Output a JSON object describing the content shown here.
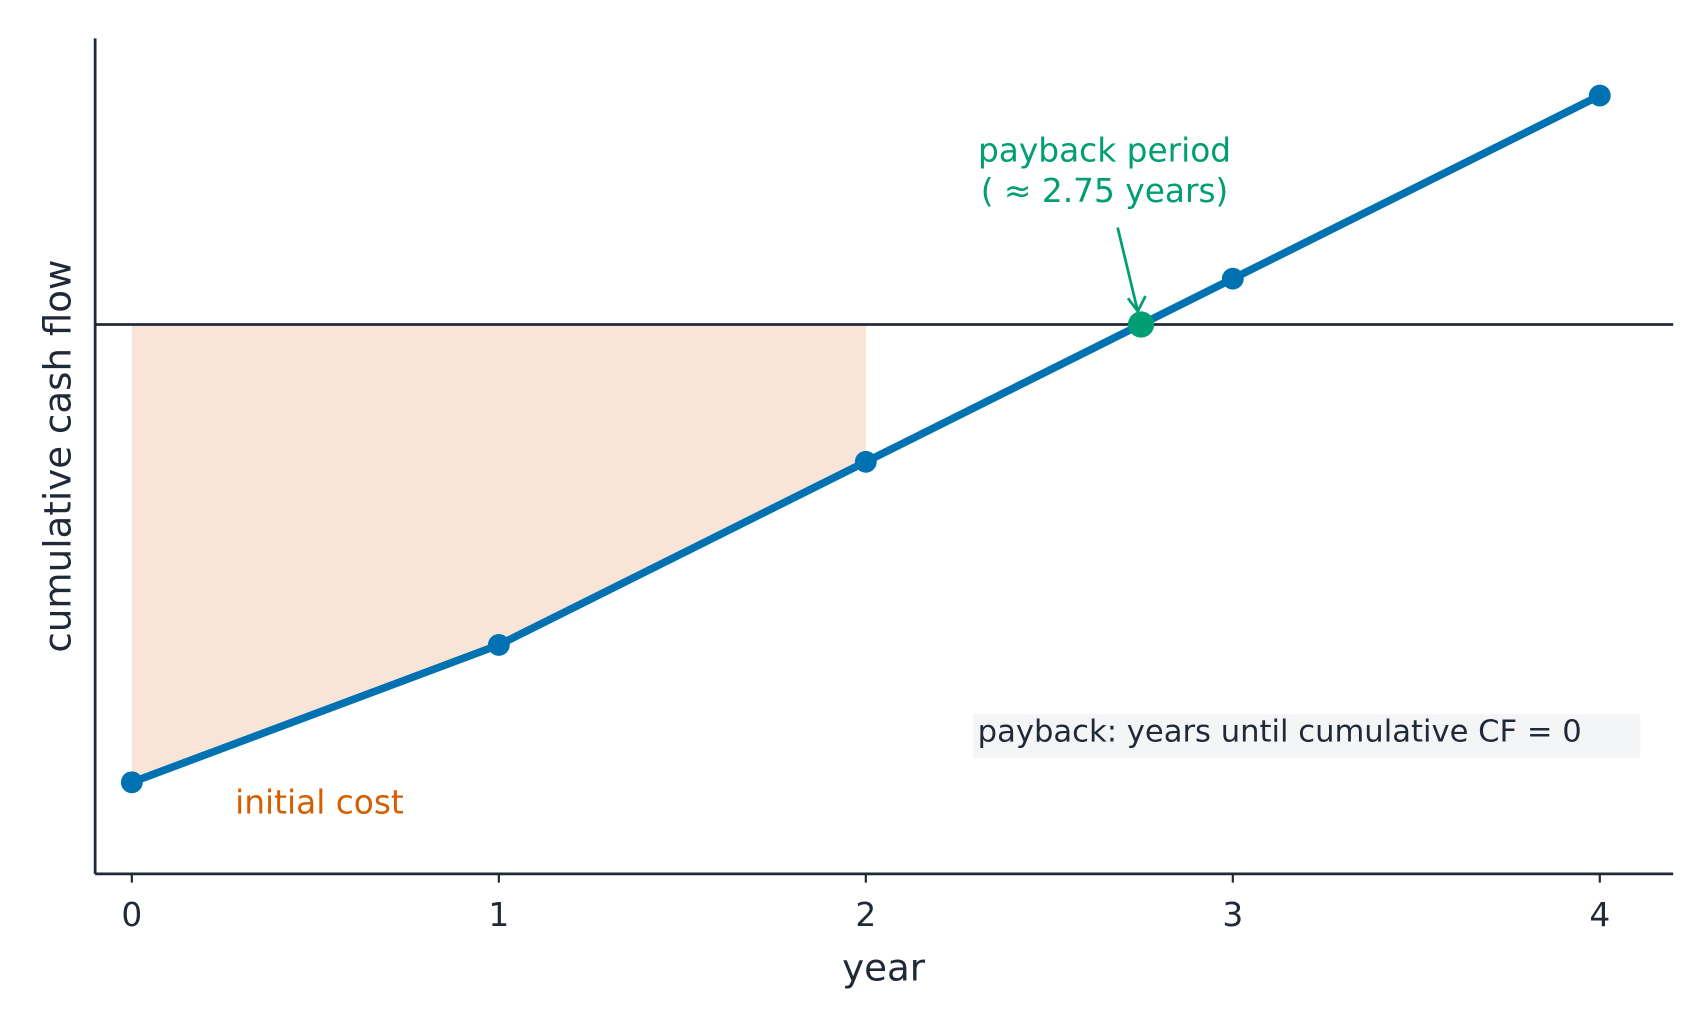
{
  "chart_data": {
    "type": "line",
    "xlabel": "year",
    "ylabel": "cumulative cash flow",
    "x": [
      0,
      1,
      2,
      3,
      4
    ],
    "series": [
      {
        "color": "#0072b2",
        "values": [
          -10,
          -7,
          -3,
          1,
          5
        ]
      }
    ],
    "xlim": [
      -0.1,
      4.2
    ],
    "xticks": [
      0,
      1,
      2,
      3,
      4
    ],
    "ylim": [
      -12,
      6.25
    ],
    "hline": 0,
    "shade": {
      "label": "initial cost",
      "xlim": [
        0,
        2
      ],
      "color": "#f8e5d7",
      "label_color": "#d55e00"
    },
    "payback": {
      "x": 2.75,
      "y": 0,
      "color": "#009e73",
      "lines": [
        "payback period",
        "( ≈ 2.75 years)"
      ]
    },
    "note": "payback: years until cumulative CF  = 0"
  }
}
